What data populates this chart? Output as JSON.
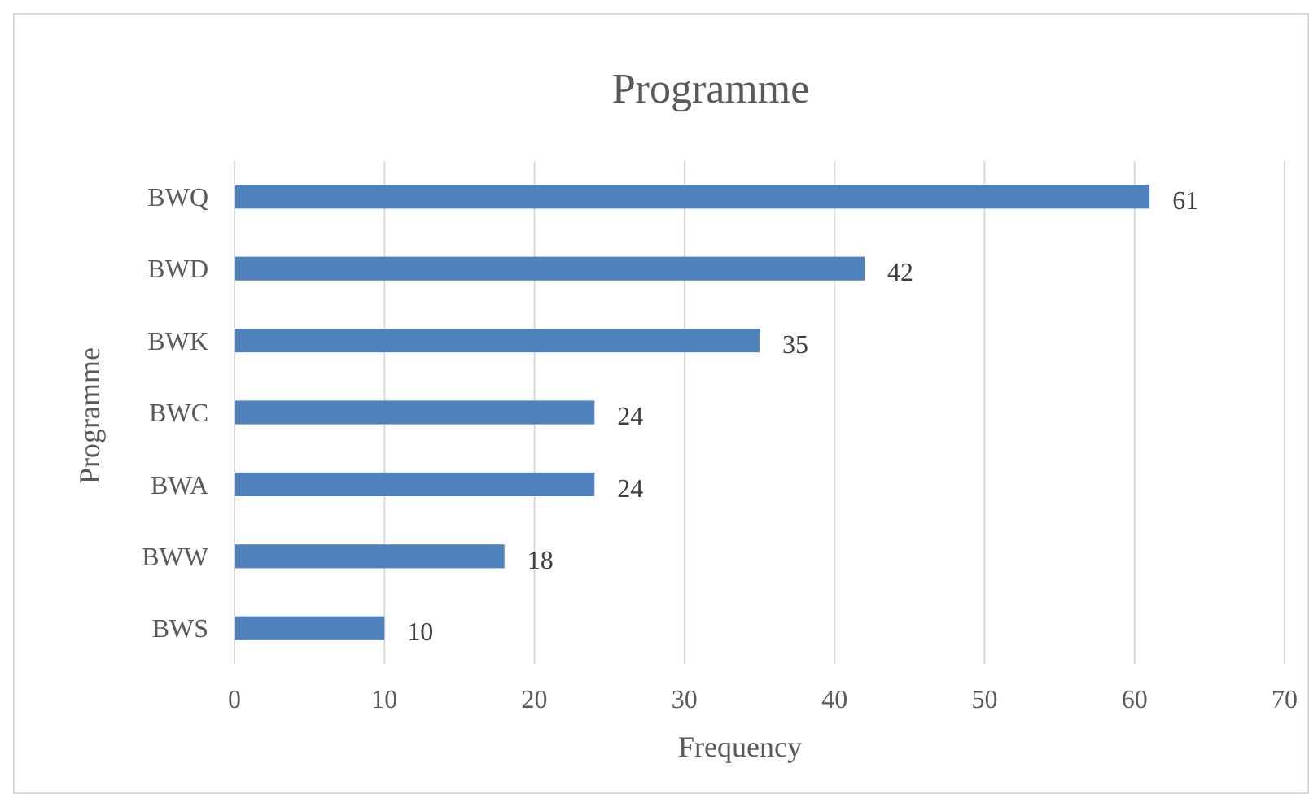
{
  "chart_data": {
    "type": "bar",
    "orientation": "horizontal",
    "title": "Programme",
    "xlabel": "Frequency",
    "ylabel": "Programme",
    "categories": [
      "BWQ",
      "BWD",
      "BWK",
      "BWC",
      "BWA",
      "BWW",
      "BWS"
    ],
    "values": [
      61,
      42,
      35,
      24,
      24,
      18,
      10
    ],
    "color": "#4f81bd",
    "xlim": [
      0,
      70
    ],
    "xticks": [
      0,
      10,
      20,
      30,
      40,
      50,
      60,
      70
    ],
    "grid": "x",
    "data_labels": true
  }
}
